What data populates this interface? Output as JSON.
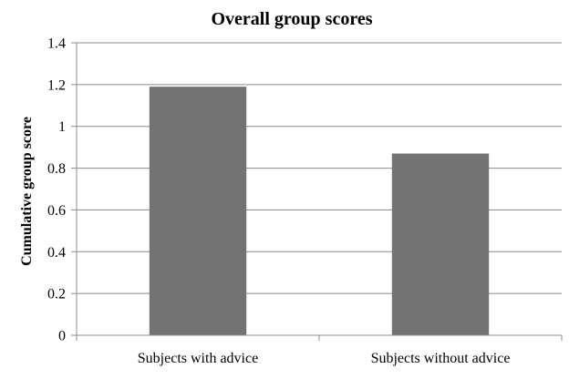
{
  "chart_data": {
    "type": "bar",
    "title": "Overall group scores",
    "xlabel": "",
    "ylabel": "Cumulative group score",
    "categories": [
      "Subjects with advice",
      "Subjects without advice"
    ],
    "values": [
      1.19,
      0.87
    ],
    "ylim": [
      0,
      1.4
    ],
    "yticks": [
      "0",
      "0.2",
      "0.4",
      "0.6",
      "0.8",
      "1",
      "1.2",
      "1.4"
    ],
    "grid": true,
    "legend": "none",
    "colors": {
      "bar": "#737373",
      "grid": "#8c8c8c"
    }
  }
}
